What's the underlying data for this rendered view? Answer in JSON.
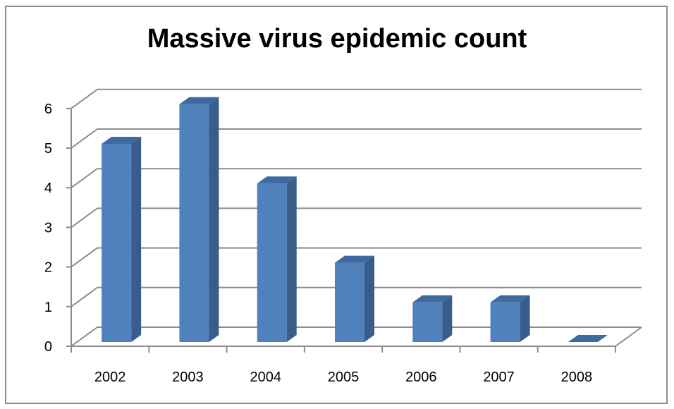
{
  "chart_data": {
    "type": "bar",
    "title": "Massive virus epidemic count",
    "xlabel": "",
    "ylabel": "",
    "categories": [
      "2002",
      "2003",
      "2004",
      "2005",
      "2006",
      "2007",
      "2008"
    ],
    "values": [
      5,
      6,
      4,
      2,
      1,
      1,
      0
    ],
    "ylim": [
      0,
      6
    ],
    "yticks": [
      "0",
      "1",
      "2",
      "3",
      "4",
      "5",
      "6"
    ],
    "grid": true,
    "legend": "none",
    "three_d": true,
    "colors": {
      "bar_front": "#4f81bd",
      "bar_side": "#385d8a",
      "bar_top": "#3f6aa0",
      "gridline": "#8c8c8c",
      "axis": "#8c8c8c"
    }
  }
}
